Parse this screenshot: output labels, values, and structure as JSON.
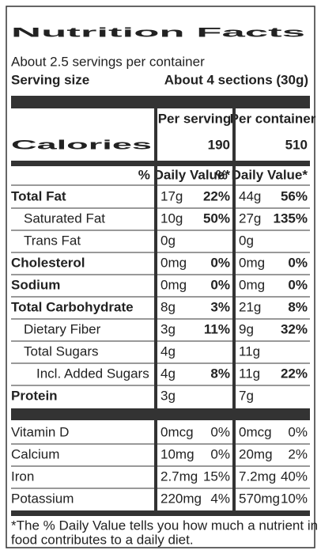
{
  "title": "Nutrition Facts",
  "servings": "About 2.5 servings per container",
  "serving_size": {
    "label": "Serving size",
    "value": "About 4 sections (30g)"
  },
  "columns": [
    "Per serving",
    "Per container"
  ],
  "calories": {
    "label": "Calories",
    "values": [
      "190",
      "510"
    ]
  },
  "daily_value_header": "% Daily Value*",
  "nutrients": [
    {
      "name": "Total Fat",
      "bold": true,
      "indent": 0,
      "amounts": [
        "17g",
        "44g"
      ],
      "dv": [
        "22%",
        "56%"
      ]
    },
    {
      "name": "Saturated Fat",
      "bold": false,
      "indent": 1,
      "amounts": [
        "10g",
        "27g"
      ],
      "dv": [
        "50%",
        "135%"
      ]
    },
    {
      "name": "Trans Fat",
      "bold": false,
      "indent": 1,
      "amounts": [
        "0g",
        "0g"
      ],
      "dv": []
    },
    {
      "name": "Cholesterol",
      "bold": true,
      "indent": 0,
      "amounts": [
        "0mg",
        "0mg"
      ],
      "dv": [
        "0%",
        "0%"
      ]
    },
    {
      "name": "Sodium",
      "bold": true,
      "indent": 0,
      "amounts": [
        "0mg",
        "0mg"
      ],
      "dv": [
        "0%",
        "0%"
      ]
    },
    {
      "name": "Total Carbohydrate",
      "bold": true,
      "indent": 0,
      "amounts": [
        "8g",
        "21g"
      ],
      "dv": [
        "3%",
        "8%"
      ]
    },
    {
      "name": "Dietary Fiber",
      "bold": false,
      "indent": 1,
      "amounts": [
        "3g",
        "9g"
      ],
      "dv": [
        "11%",
        "32%"
      ]
    },
    {
      "name": "Total Sugars",
      "bold": false,
      "indent": 1,
      "amounts": [
        "4g",
        "11g"
      ],
      "dv": []
    },
    {
      "name": "Incl. Added Sugars",
      "bold": false,
      "indent": 2,
      "amounts": [
        "4g",
        "11g"
      ],
      "dv": [
        "8%",
        "22%"
      ]
    },
    {
      "name": "Protein",
      "bold": true,
      "indent": 0,
      "amounts": [
        "3g",
        "7g"
      ],
      "dv": []
    }
  ],
  "vitamins": [
    {
      "name": "Vitamin D",
      "amounts": [
        "0mcg",
        "0mcg"
      ],
      "dv": [
        "0%",
        "0%"
      ]
    },
    {
      "name": "Calcium",
      "amounts": [
        "10mg",
        "20mg"
      ],
      "dv": [
        "0%",
        "2%"
      ]
    },
    {
      "name": "Iron",
      "amounts": [
        "2.7mg",
        "7.2mg"
      ],
      "dv": [
        "15%",
        "40%"
      ]
    },
    {
      "name": "Potassium",
      "amounts": [
        "220mg",
        "570mg"
      ],
      "dv": [
        "4%",
        "10%"
      ]
    }
  ],
  "footnote": [
    "*The % Daily Value tells you how much a nutrient in a serving a",
    "food contributes to a daily diet."
  ]
}
